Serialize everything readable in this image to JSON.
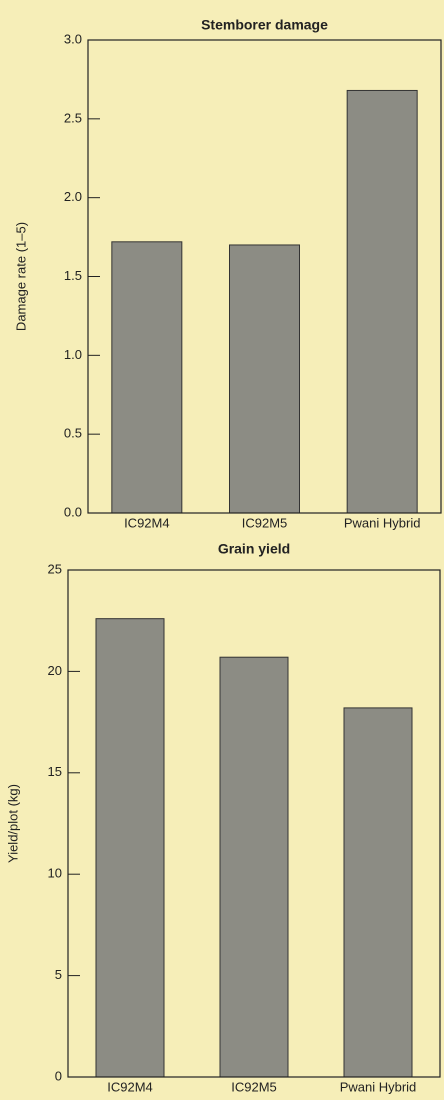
{
  "chart_data": [
    {
      "type": "bar",
      "title": "Stemborer damage",
      "y_label": "Damage rate (1–5)",
      "categories": [
        "IC92M4",
        "IC92M5",
        "Pwani Hybrid"
      ],
      "values": [
        1.72,
        1.7,
        2.68
      ],
      "color": "#8c8c84",
      "ylim": [
        0,
        3
      ],
      "yticks": [
        {
          "value": 0,
          "label": "0.0"
        },
        0.5,
        {
          "value": 1,
          "label": "1.0"
        },
        1.5,
        {
          "value": 2,
          "label": "2.0"
        },
        2.5,
        {
          "value": 3,
          "label": "3.0"
        }
      ]
    },
    {
      "type": "bar",
      "title": "Grain yield",
      "y_label": "Yield/plot (kg)",
      "categories": [
        "IC92M4",
        "IC92M5",
        "Pwani Hybrid"
      ],
      "values": [
        22.6,
        20.7,
        18.2
      ],
      "color": "#8c8c84",
      "ylim": [
        0,
        25
      ],
      "yticks": [
        0,
        5,
        10,
        15,
        20,
        25
      ]
    }
  ]
}
